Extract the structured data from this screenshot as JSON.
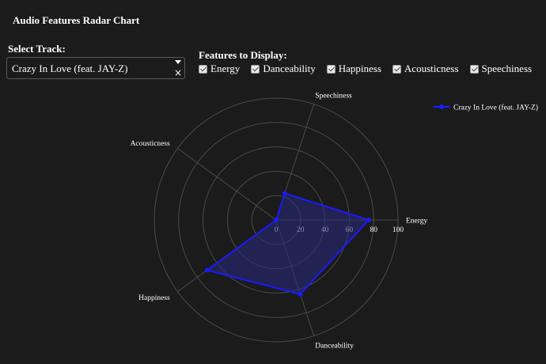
{
  "app": {
    "title": "Audio Features Radar Chart"
  },
  "controls": {
    "track_label": "Select Track:",
    "selected_track": "Crazy In Love (feat. JAY-Z)",
    "clear_symbol": "×",
    "features_label": "Features to Display:",
    "features": [
      {
        "label": "Energy",
        "checked": true
      },
      {
        "label": "Danceability",
        "checked": true
      },
      {
        "label": "Happiness",
        "checked": true
      },
      {
        "label": "Acousticness",
        "checked": true
      },
      {
        "label": "Speechiness",
        "checked": true
      }
    ]
  },
  "chart_data": {
    "type": "radar",
    "axes": [
      "Energy",
      "Danceability",
      "Happiness",
      "Acousticness",
      "Speechiness"
    ],
    "series": [
      {
        "name": "Crazy In Love (feat. JAY-Z)",
        "values": [
          76,
          64,
          70,
          0,
          23
        ],
        "color": "#1a1aff"
      }
    ],
    "radial_ticks": [
      0,
      20,
      40,
      60,
      80,
      100
    ],
    "radial_range": [
      0,
      100
    ],
    "legend": "top-right",
    "grid": true,
    "fill_color": "rgba(40,40,130,0.55)"
  }
}
